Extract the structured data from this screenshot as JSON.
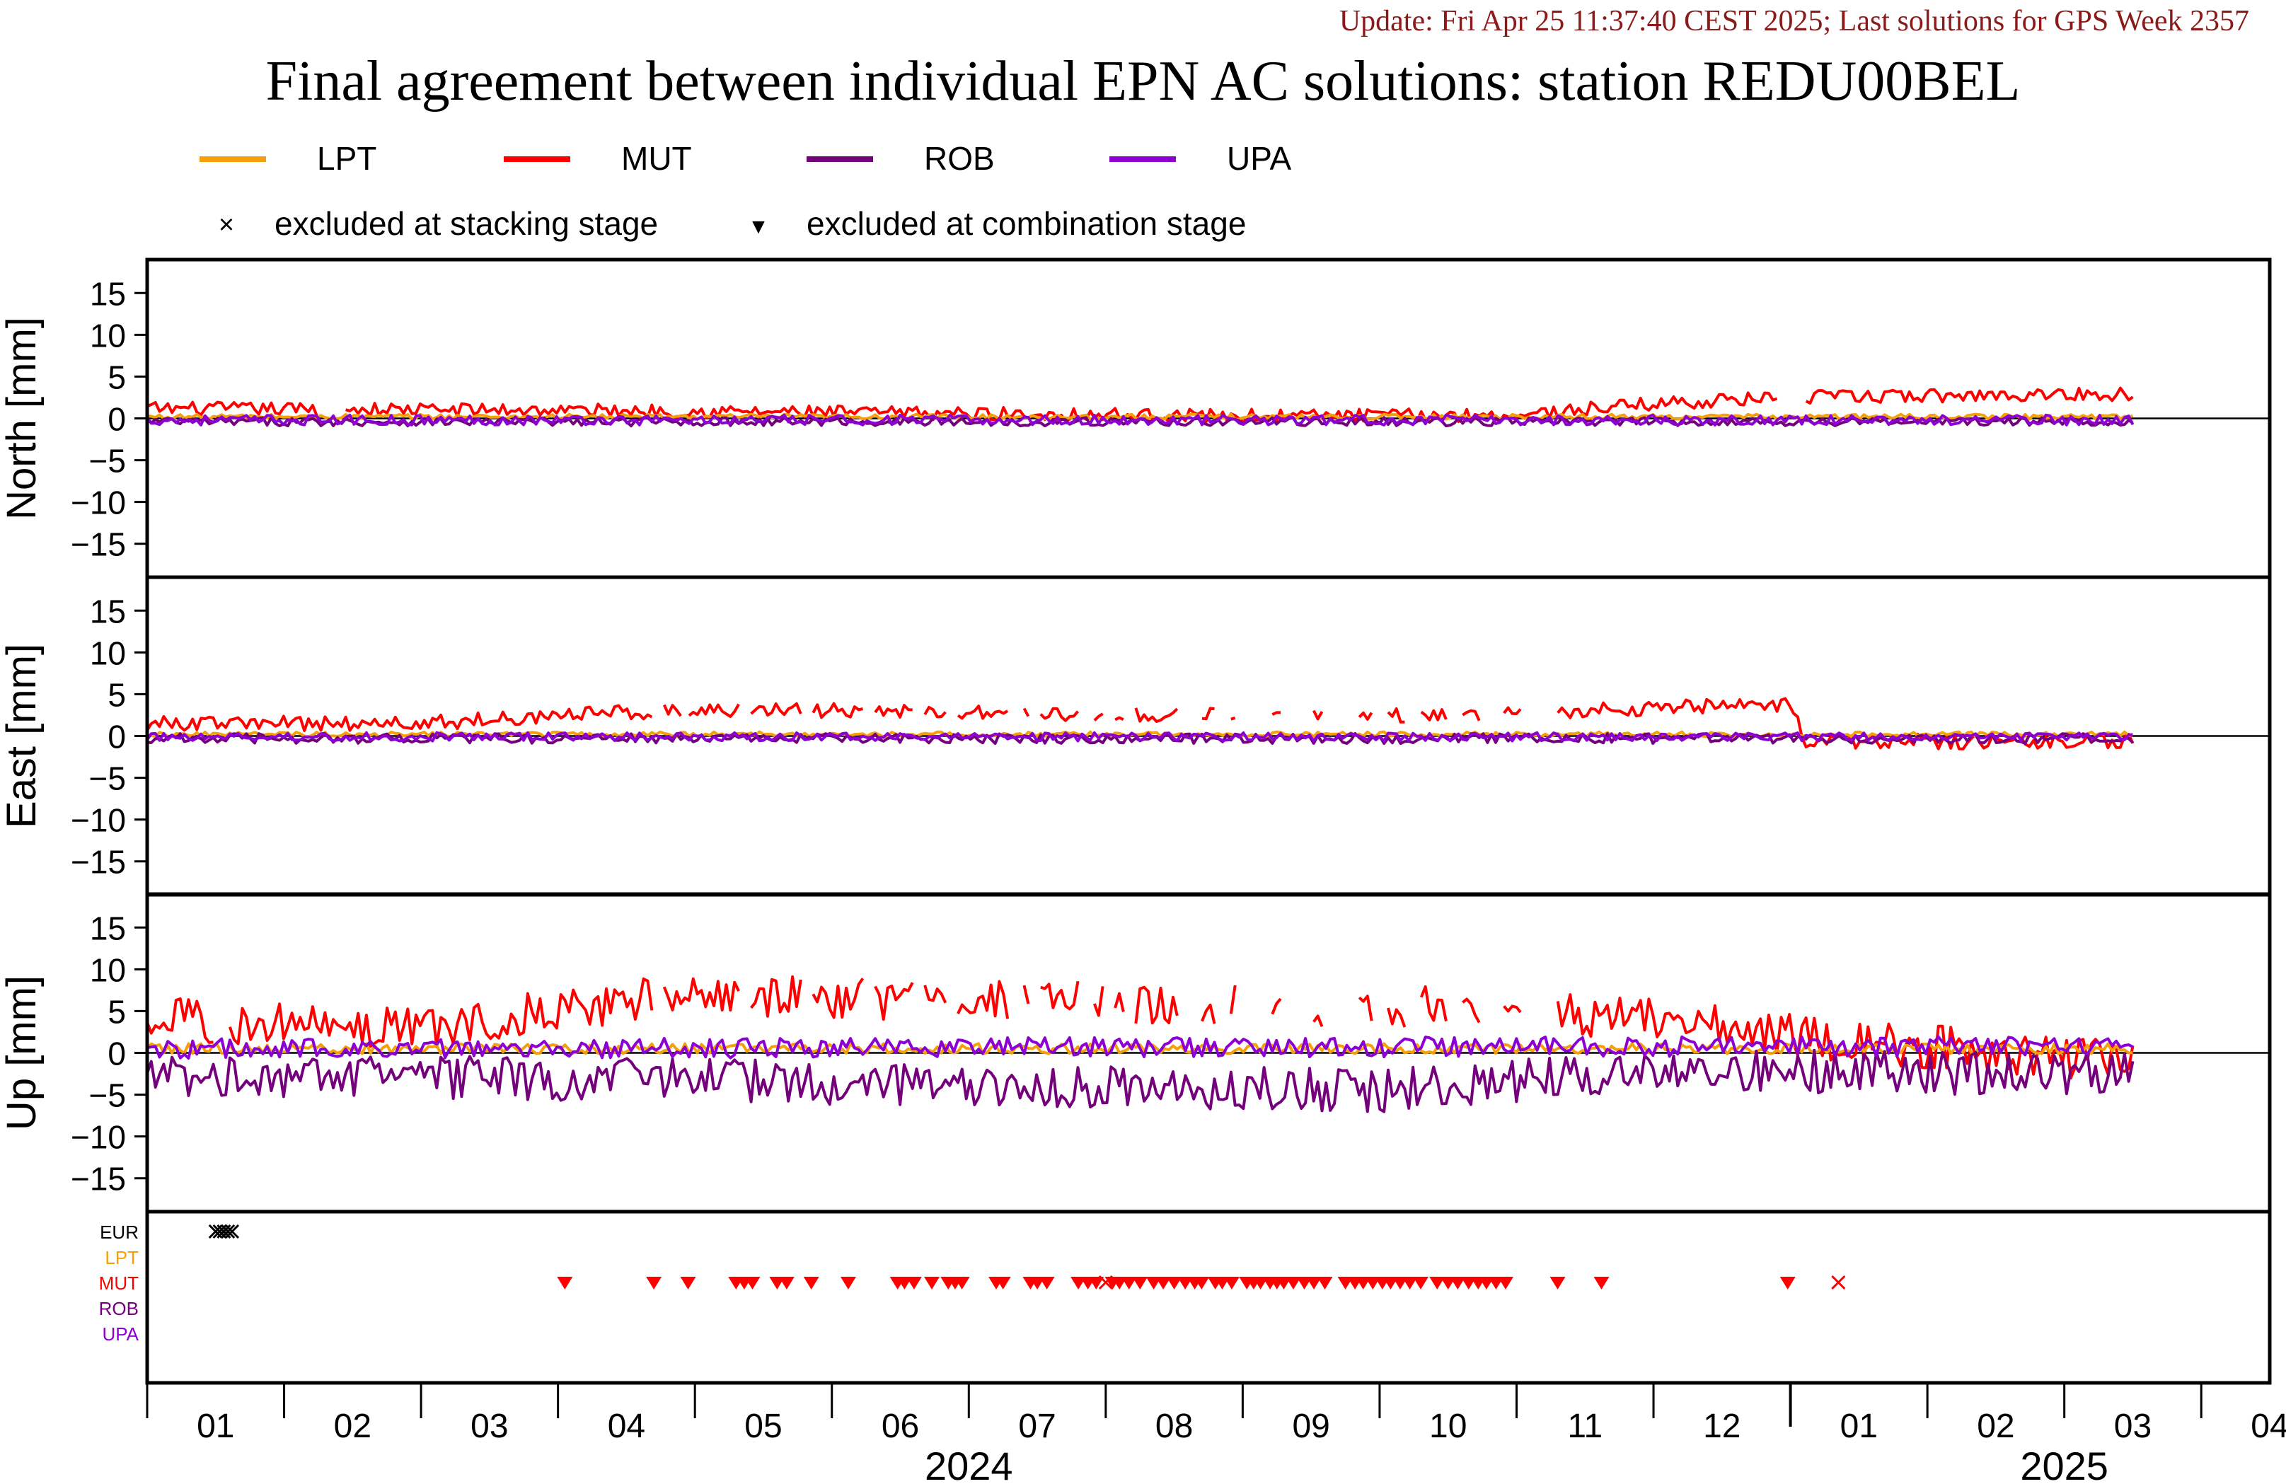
{
  "header": {
    "update_text": "Update: Fri Apr 25 11:37:40 CEST 2025; Last solutions for GPS Week 2357",
    "title": "Final agreement between individual EPN AC solutions: station REDU00BEL"
  },
  "legend": {
    "series": [
      {
        "name": "LPT",
        "color": "#f5a00a"
      },
      {
        "name": "MUT",
        "color": "#ff0000"
      },
      {
        "name": "ROB",
        "color": "#74007c"
      },
      {
        "name": "UPA",
        "color": "#8c00d4"
      }
    ],
    "markers": [
      {
        "symbol": "×",
        "label": "excluded at stacking stage"
      },
      {
        "symbol": "▼",
        "label": "excluded at combination stage"
      }
    ]
  },
  "chart_data": [
    {
      "type": "line",
      "ylabel": "North [mm]",
      "ylim": [
        -19,
        19
      ],
      "yticks": [
        15,
        10,
        5,
        0,
        -5,
        -10,
        -15
      ],
      "series": [
        {
          "name": "LPT",
          "level": [
            [
              0,
              0.2
            ],
            [
              14,
              0.2
            ]
          ],
          "noise": 0.3
        },
        {
          "name": "MUT",
          "level": [
            [
              0,
              1.2
            ],
            [
              3,
              1.0
            ],
            [
              8,
              0.3
            ],
            [
              10,
              0.4
            ],
            [
              11,
              1.8
            ],
            [
              12,
              2.5
            ],
            [
              14,
              2.9
            ]
          ],
          "noise": 0.8,
          "gaps": [
            [
              1.25,
              1.45
            ],
            [
              11.93,
              12.1
            ]
          ]
        },
        {
          "name": "ROB",
          "level": [
            [
              0,
              -0.4
            ],
            [
              14,
              -0.4
            ]
          ],
          "noise": 0.5
        },
        {
          "name": "UPA",
          "level": [
            [
              0,
              -0.2
            ],
            [
              14,
              -0.2
            ]
          ],
          "noise": 0.6
        }
      ]
    },
    {
      "type": "line",
      "ylabel": "East [mm]",
      "ylim": [
        -19,
        19
      ],
      "yticks": [
        15,
        10,
        5,
        0,
        -5,
        -10,
        -15
      ],
      "series": [
        {
          "name": "LPT",
          "level": [
            [
              0,
              0.2
            ],
            [
              14,
              0.2
            ]
          ],
          "noise": 0.3
        },
        {
          "name": "MUT",
          "level": [
            [
              0,
              1.5
            ],
            [
              2,
              1.5
            ],
            [
              3,
              2.5
            ],
            [
              4,
              3.2
            ],
            [
              5,
              3.0
            ],
            [
              7,
              2.5
            ],
            [
              9,
              2.4
            ],
            [
              11,
              3.3
            ],
            [
              12,
              3.8
            ],
            [
              12.1,
              -0.7
            ],
            [
              14,
              -0.6
            ]
          ],
          "noise": 0.9,
          "gaps": [
            [
              3.7,
              3.75
            ],
            [
              3.9,
              3.95
            ],
            [
              4.35,
              4.4
            ],
            [
              4.8,
              4.85
            ],
            [
              5.25,
              5.3
            ],
            [
              5.6,
              5.65
            ],
            [
              5.85,
              5.9
            ],
            [
              6.3,
              6.38
            ],
            [
              6.45,
              6.5
            ],
            [
              6.8,
              6.9
            ],
            [
              7,
              7.05
            ],
            [
              7.15,
              7.2
            ],
            [
              7.55,
              7.7
            ],
            [
              7.8,
              7.9
            ],
            [
              7.95,
              8.2
            ],
            [
              8.3,
              8.5
            ],
            [
              8.6,
              8.85
            ],
            [
              8.95,
              9.05
            ],
            [
              9.2,
              9.3
            ],
            [
              9.5,
              9.6
            ],
            [
              9.75,
              9.9
            ],
            [
              10.05,
              10.3
            ]
          ]
        },
        {
          "name": "ROB",
          "level": [
            [
              0,
              -0.3
            ],
            [
              14,
              -0.3
            ]
          ],
          "noise": 0.6
        },
        {
          "name": "UPA",
          "level": [
            [
              0,
              -0.1
            ],
            [
              14,
              -0.1
            ]
          ],
          "noise": 0.5
        }
      ]
    },
    {
      "type": "line",
      "ylabel": "Up [mm]",
      "ylim": [
        -19,
        19
      ],
      "yticks": [
        15,
        10,
        5,
        0,
        -5,
        -10,
        -15
      ],
      "series": [
        {
          "name": "LPT",
          "level": [
            [
              0,
              0.5
            ],
            [
              14,
              0.5
            ]
          ],
          "noise": 0.6
        },
        {
          "name": "MUT",
          "level": [
            [
              0,
              4
            ],
            [
              2,
              3
            ],
            [
              3,
              5
            ],
            [
              4,
              7
            ],
            [
              6,
              6
            ],
            [
              8,
              6
            ],
            [
              10,
              5
            ],
            [
              11,
              4
            ],
            [
              12,
              2
            ],
            [
              14,
              -0.5
            ]
          ],
          "noise": 2.6,
          "gaps": [
            [
              0.5,
              0.58
            ],
            [
              3.7,
              3.75
            ],
            [
              4.35,
              4.4
            ],
            [
              4.8,
              4.85
            ],
            [
              5.25,
              5.3
            ],
            [
              5.6,
              5.65
            ],
            [
              5.85,
              5.9
            ],
            [
              6.3,
              6.38
            ],
            [
              6.45,
              6.5
            ],
            [
              6.8,
              6.9
            ],
            [
              7,
              7.05
            ],
            [
              7.15,
              7.2
            ],
            [
              7.55,
              7.7
            ],
            [
              7.8,
              7.9
            ],
            [
              7.95,
              8.2
            ],
            [
              8.3,
              8.5
            ],
            [
              8.6,
              8.85
            ],
            [
              8.95,
              9.05
            ],
            [
              9.2,
              9.3
            ],
            [
              9.5,
              9.6
            ],
            [
              9.75,
              9.9
            ],
            [
              10.05,
              10.3
            ]
          ]
        },
        {
          "name": "ROB",
          "level": [
            [
              0,
              -2.5
            ],
            [
              7,
              -4
            ],
            [
              9,
              -4.5
            ],
            [
              11,
              -2
            ],
            [
              14,
              -2.5
            ]
          ],
          "noise": 2.6
        },
        {
          "name": "UPA",
          "level": [
            [
              0,
              0.5
            ],
            [
              14,
              0.8
            ]
          ],
          "noise": 1.2
        }
      ]
    },
    {
      "type": "scatter",
      "rows": [
        {
          "name": "EUR",
          "color": "#000000"
        },
        {
          "name": "LPT",
          "color": "#f5a00a"
        },
        {
          "name": "MUT",
          "color": "#ff0000"
        },
        {
          "name": "ROB",
          "color": "#74007c"
        },
        {
          "name": "UPA",
          "color": "#8c00d4"
        }
      ],
      "stacking_exclusions": [
        {
          "row": "EUR",
          "x": [
            0.5,
            0.53,
            0.56,
            0.59,
            0.62
          ]
        },
        {
          "row": "MUT",
          "x": [
            7.0,
            12.35
          ]
        }
      ],
      "combination_exclusions": [
        {
          "row": "MUT",
          "x": [
            3.05,
            3.7,
            3.95,
            4.3,
            4.36,
            4.42,
            4.6,
            4.67,
            4.85,
            5.12,
            5.48,
            5.53,
            5.6,
            5.73,
            5.85,
            5.9,
            5.95,
            6.2,
            6.25,
            6.45,
            6.5,
            6.57,
            6.8,
            6.87,
            6.93,
            7.05,
            7.1,
            7.17,
            7.25,
            7.35,
            7.42,
            7.5,
            7.58,
            7.65,
            7.7,
            7.8,
            7.85,
            7.92,
            8.03,
            8.08,
            8.13,
            8.2,
            8.25,
            8.3,
            8.37,
            8.45,
            8.52,
            8.6,
            8.75,
            8.82,
            8.88,
            8.95,
            9.02,
            9.08,
            9.15,
            9.22,
            9.3,
            9.42,
            9.5,
            9.57,
            9.65,
            9.72,
            9.78,
            9.85,
            9.92,
            10.3,
            10.62,
            11.98
          ]
        }
      ]
    }
  ],
  "time_axis": {
    "xlim": [
      0,
      15.5
    ],
    "month_labels": [
      {
        "label": "01",
        "x": 0.5
      },
      {
        "label": "02",
        "x": 1.5
      },
      {
        "label": "03",
        "x": 2.5
      },
      {
        "label": "04",
        "x": 3.5
      },
      {
        "label": "05",
        "x": 4.5
      },
      {
        "label": "06",
        "x": 5.5
      },
      {
        "label": "07",
        "x": 6.5
      },
      {
        "label": "08",
        "x": 7.5
      },
      {
        "label": "09",
        "x": 8.5
      },
      {
        "label": "10",
        "x": 9.5
      },
      {
        "label": "11",
        "x": 10.5
      },
      {
        "label": "12",
        "x": 11.5
      },
      {
        "label": "01",
        "x": 12.5
      },
      {
        "label": "02",
        "x": 13.5
      },
      {
        "label": "03",
        "x": 14.5
      },
      {
        "label": "04",
        "x": 15.5
      }
    ],
    "year_labels": [
      {
        "label": "2024",
        "x": 6.0
      },
      {
        "label": "2025",
        "x": 14.0
      }
    ],
    "data_end": 14.5
  }
}
